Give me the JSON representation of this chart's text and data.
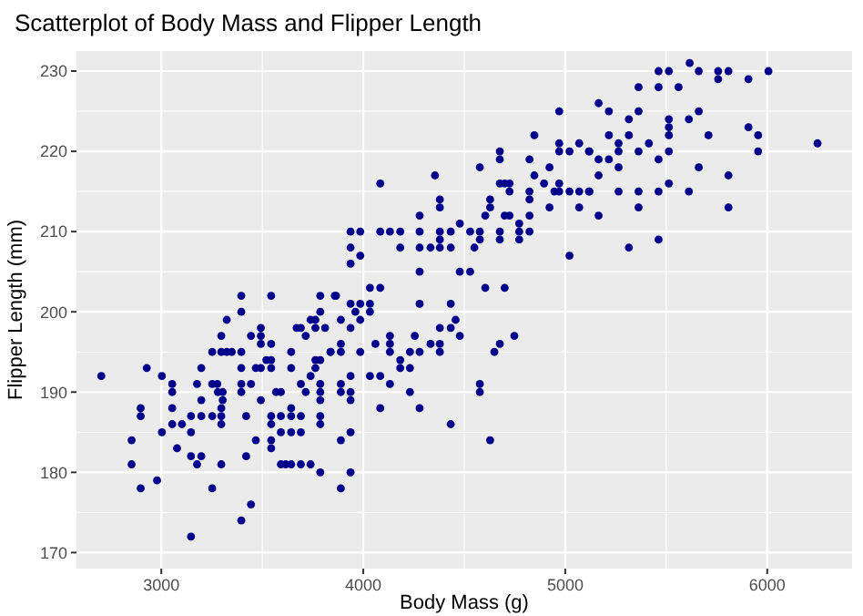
{
  "chart_data": {
    "type": "scatter",
    "title": "Scatterplot of Body Mass and Flipper Length",
    "xlabel": "Body Mass (g)",
    "ylabel": "Flipper Length (mm)",
    "x": [
      2703,
      2928,
      3003,
      2853,
      2853,
      2898,
      2898,
      2898,
      2979,
      3003,
      3054,
      3054,
      3054,
      3054,
      3078,
      3102,
      3147,
      3147,
      3147,
      3147,
      3198,
      3177,
      3177,
      3198,
      3198,
      3198,
      3252,
      3277,
      3252,
      3297,
      3252,
      3297,
      3297,
      3297,
      3252,
      3297,
      3324,
      3349,
      3297,
      3324,
      3280,
      3304,
      3304,
      3396,
      3396,
      3396,
      3396,
      3396,
      3396,
      3420,
      3420,
      3396,
      3444,
      3468,
      3444,
      3493,
      3493,
      3493,
      3544,
      3544,
      3544,
      3520,
      3544,
      3468,
      3493,
      3444,
      3493,
      3544,
      3544,
      3544,
      3544,
      3592,
      3616,
      3643,
      3691,
      3739,
      3787,
      3592,
      3643,
      3691,
      3592,
      3643,
      3691,
      3568,
      3592,
      3643,
      3643,
      3643,
      3670,
      3691,
      3715,
      3739,
      3763,
      3763,
      3811,
      3787,
      3787,
      3859,
      3691,
      3715,
      3739,
      3763,
      3787,
      3763,
      3787,
      3787,
      3787,
      3787,
      3787,
      3838,
      4084,
      4279,
      4279,
      4279,
      4279,
      4279,
      4279,
      4279,
      3937,
      3985,
      3937,
      3937,
      3985,
      4084,
      4132,
      4183,
      4183,
      4333,
      4379,
      4379,
      4379,
      4379,
      4379,
      4355,
      4433,
      4433,
      4478,
      4529,
      4577,
      4577,
      4550,
      4577,
      4604,
      4628,
      4628,
      4676,
      4700,
      4724,
      4676,
      4676,
      4724,
      4700,
      4724,
      4676,
      4676,
      4772,
      4772,
      4772,
      4823,
      4823,
      4823,
      4823,
      4847,
      4823,
      4847,
      4895,
      4922,
      4922,
      4946,
      4970,
      4970,
      4970,
      4970,
      4970,
      5021,
      5069,
      5069,
      5069,
      5120,
      5120,
      5021,
      5021,
      4478,
      4529,
      4604,
      4700,
      4033,
      4084,
      4033,
      4033,
      3985,
      3937,
      3961,
      3985,
      3889,
      3937,
      3865,
      3889,
      3889,
      3838,
      3985,
      4060,
      4132,
      4132,
      4132,
      4183,
      4183,
      4231,
      4231,
      4255,
      4333,
      4379,
      4379,
      4379,
      4433,
      4433,
      4457,
      4478,
      4649,
      4676,
      4748,
      4577,
      4577,
      3889,
      3889,
      3937,
      3937,
      3937,
      4033,
      4084,
      4132,
      4231,
      4084,
      4433,
      3937,
      3889,
      4628,
      3937,
      3889,
      5616,
      5462,
      5513,
      5661,
      5757,
      5808,
      6006,
      5757,
      5907,
      5363,
      5462,
      5561,
      5165,
      5216,
      5363,
      5661,
      5315,
      5513,
      5612,
      5513,
      5907,
      5216,
      5315,
      5513,
      5709,
      5955,
      5264,
      5414,
      6249,
      5117,
      5264,
      5363,
      5513,
      5955,
      5165,
      5216,
      5462,
      5264,
      5661,
      5165,
      5808,
      5513,
      5117,
      5264,
      5363,
      5462,
      5612,
      5363,
      5808,
      5165,
      5462,
      5315
    ],
    "values": [
      192,
      193,
      192,
      184,
      181,
      178,
      188,
      187,
      179,
      185,
      191,
      190,
      188,
      186,
      183,
      186,
      172,
      187,
      185,
      182,
      182,
      181,
      191,
      193,
      189,
      187,
      191,
      191,
      187,
      187,
      178,
      181,
      188,
      186,
      195,
      195,
      195,
      195,
      197,
      199,
      190,
      189,
      190,
      202,
      200,
      195,
      193,
      191,
      190,
      187,
      182,
      174,
      176,
      184,
      197,
      198,
      197,
      196,
      202,
      196,
      193,
      194,
      194,
      193,
      193,
      191,
      189,
      187,
      186,
      184,
      183,
      181,
      181,
      181,
      181,
      181,
      180,
      185,
      185,
      185,
      187,
      187,
      187,
      190,
      190,
      188,
      193,
      195,
      198,
      198,
      197,
      199,
      199,
      198,
      198,
      200,
      202,
      202,
      191,
      190,
      192,
      193,
      194,
      194,
      191,
      190,
      189,
      187,
      186,
      195,
      216,
      212,
      210,
      208,
      205,
      201,
      195,
      188,
      210,
      210,
      208,
      206,
      207,
      210,
      210,
      210,
      208,
      208,
      210,
      209,
      208,
      214,
      213,
      217,
      210,
      208,
      211,
      210,
      210,
      209,
      208,
      218,
      212,
      213,
      214,
      216,
      216,
      216,
      220,
      219,
      215,
      212,
      212,
      210,
      209,
      211,
      210,
      209,
      212,
      210,
      215,
      214,
      222,
      219,
      217,
      216,
      218,
      213,
      215,
      215,
      221,
      220,
      216,
      225,
      220,
      221,
      215,
      213,
      220,
      215,
      215,
      207,
      205,
      205,
      203,
      203,
      203,
      203,
      201,
      200,
      201,
      201,
      200,
      199,
      199,
      198,
      202,
      196,
      195,
      195,
      195,
      196,
      197,
      196,
      195,
      194,
      193,
      195,
      193,
      197,
      196,
      196,
      195,
      198,
      198,
      201,
      199,
      197,
      195,
      196,
      197,
      191,
      190,
      191,
      190,
      192,
      190,
      189,
      192,
      192,
      191,
      190,
      188,
      186,
      185,
      184,
      184,
      180,
      178,
      231,
      230,
      230,
      230,
      230,
      230,
      230,
      229,
      229,
      228,
      228,
      228,
      226,
      225,
      225,
      225,
      224,
      224,
      224,
      223,
      223,
      222,
      222,
      222,
      222,
      222,
      221,
      221,
      221,
      220,
      220,
      220,
      220,
      220,
      219,
      219,
      219,
      218,
      218,
      217,
      217,
      216,
      215,
      215,
      215,
      215,
      215,
      213,
      213,
      212,
      209,
      208
    ],
    "color": "#00008b",
    "marker": "circle",
    "xlim": [
      2580,
      6420
    ],
    "ylim": [
      168,
      232.5
    ],
    "xticks": [
      3000,
      4000,
      5000,
      6000
    ],
    "yticks": [
      170,
      180,
      190,
      200,
      210,
      220,
      230
    ],
    "grid": true
  }
}
